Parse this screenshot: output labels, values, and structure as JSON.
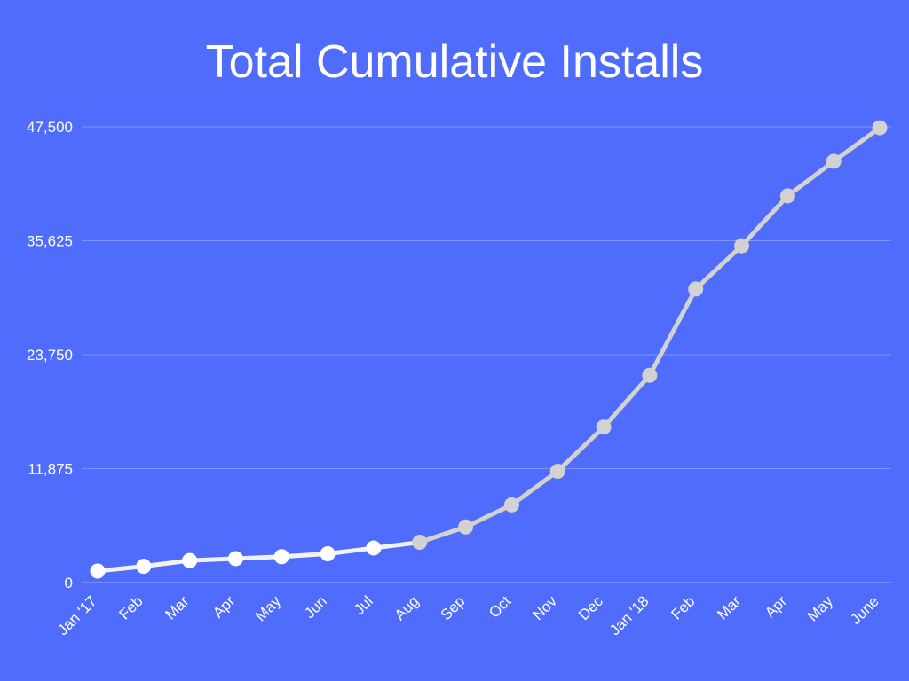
{
  "chart_data": {
    "type": "line",
    "title": "Total Cumulative Installs",
    "xlabel": "",
    "ylabel": "",
    "categories": [
      "Jan '17",
      "Feb",
      "Mar",
      "Apr",
      "May",
      "Jun",
      "Jul",
      "Aug",
      "Sep",
      "Oct",
      "Nov",
      "Dec",
      "Jan '18",
      "Feb",
      "Mar",
      "Apr",
      "May",
      "June"
    ],
    "values": [
      1200,
      1700,
      2300,
      2500,
      2700,
      3000,
      3600,
      4200,
      5800,
      8100,
      11600,
      16200,
      21600,
      30600,
      35100,
      40300,
      43900,
      47400
    ],
    "yticks": [
      "0",
      "11,875",
      "23,750",
      "35,625",
      "47,500"
    ],
    "ylim": [
      0,
      47500
    ],
    "grid": true,
    "line_color": "#d2d2d2",
    "early_marker_color": "#ffffff",
    "background": "#4f6cfc"
  }
}
